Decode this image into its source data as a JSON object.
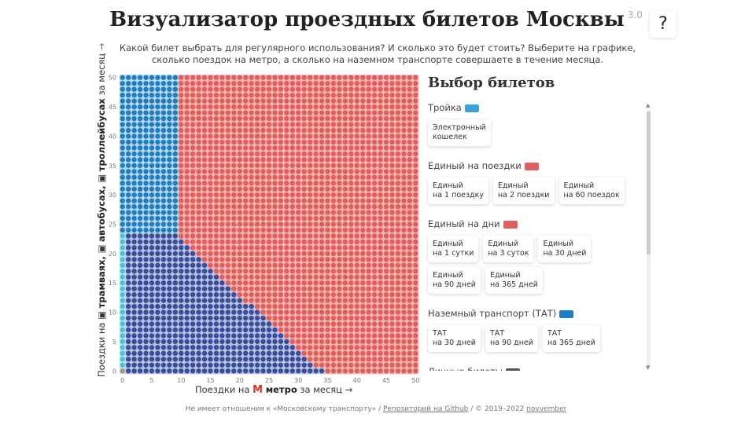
{
  "header": {
    "title": "Визуализатор проездных билетов Москвы",
    "version": "3.0",
    "help_label": "?",
    "subtitle": "Какой билет выбрать для регулярного использования? И сколько это будет стоить? Выберите на графике, сколько поездок на метро, а сколько на наземном транспорте совершаете в течение месяца."
  },
  "chart": {
    "ylabel": {
      "prefix": "Поездки на",
      "t1": "трамваях,",
      "t2": "автобусах,",
      "t3": "троллейбусах",
      "suffix": "за месяц",
      "arrow": "→"
    },
    "xlabel": {
      "prefix": "Поездки на",
      "metro_icon": "М",
      "bold": "метро",
      "suffix": "за месяц",
      "arrow": "→"
    },
    "colors": {
      "red": "#e05e5c",
      "blue": "#1f7ec0",
      "navy": "#3a4d9c",
      "teal": "#4cc2d2",
      "gray": "#9a9a9a"
    }
  },
  "chart_data": {
    "type": "heatmap",
    "x": {
      "label": "Поездки на метро за месяц",
      "range": [
        0,
        50
      ],
      "ticks": [
        0,
        5,
        10,
        15,
        20,
        25,
        30,
        35,
        40,
        45,
        50
      ]
    },
    "y": {
      "label": "Поездки на трамваях, автобусах, троллейбусах за месяц",
      "range": [
        0,
        50
      ],
      "ticks": [
        0,
        5,
        10,
        15,
        20,
        25,
        30,
        35,
        40,
        45,
        50
      ]
    },
    "regions": [
      {
        "color": "blue",
        "description": "x 0–9, y ≥ 24"
      },
      {
        "color": "navy",
        "description": "x 1–34, y ≤ 23 below diagonal boundary"
      },
      {
        "color": "teal",
        "description": "x 0, y 1–23"
      },
      {
        "color": "gray",
        "description": "x 0, y 0"
      },
      {
        "color": "red",
        "description": "remaining area"
      }
    ]
  },
  "panel": {
    "title": "Выбор билетов",
    "groups": [
      {
        "label": "Тройка",
        "icon": "troika-card-icon",
        "color": "#3ba3dc",
        "cards": [
          "Электронный кошелек"
        ]
      },
      {
        "label": "Единый на поездки",
        "icon": "red-card-icon",
        "color": "#e05e5c",
        "cards": [
          "Единый на 1 поездку",
          "Единый на 2 поездки",
          "Единый на 60 поездок"
        ]
      },
      {
        "label": "Единый на дни",
        "icon": "red-card-icon",
        "color": "#e05e5c",
        "cards": [
          "Единый на 1 сутки",
          "Единый на 3 суток",
          "Единый на 30 дней",
          "Единый на 90 дней",
          "Единый на 365 дней"
        ]
      },
      {
        "label": "Наземный транспорт (ТАТ)",
        "icon": "blue-card-icon",
        "color": "#1f7ec0",
        "cards": [
          "ТАТ на 30 дней",
          "ТАТ на 90 дней",
          "ТАТ на 365 дней"
        ]
      },
      {
        "label": "Личные билеты",
        "icon": "dark-card-icon",
        "color": "#555555",
        "cards": []
      }
    ]
  },
  "footer": {
    "text1": "Не имеет отношения к «Московскому транспорту»",
    "sep": " / ",
    "link1": "Репозиторий на Github",
    "text2": "© 2019–2022",
    "link2": "novvember"
  }
}
